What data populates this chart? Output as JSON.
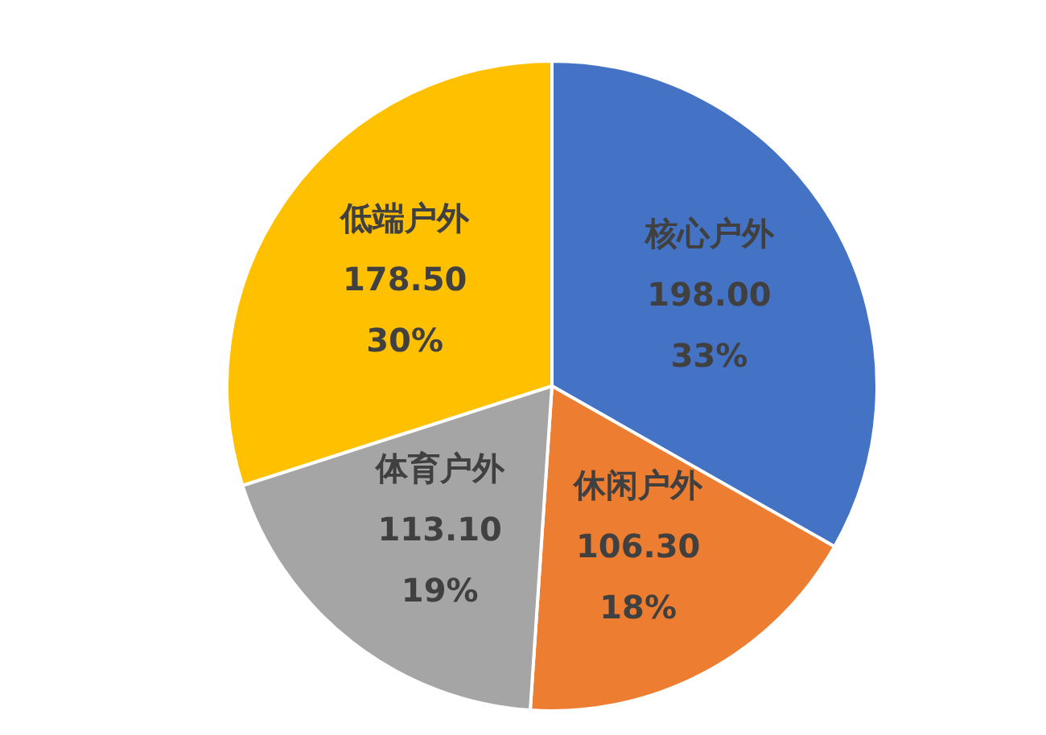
{
  "chart_data": {
    "type": "pie",
    "categories": [
      "核心户外",
      "休闲户外",
      "体育户外",
      "低端户外"
    ],
    "values": [
      198.0,
      106.3,
      113.1,
      178.5
    ],
    "colors": [
      "#4472c4",
      "#ed7d31",
      "#a5a5a5",
      "#ffc000"
    ],
    "value_labels": [
      "198.00",
      "106.30",
      "113.10",
      "178.50"
    ],
    "annotations": [
      {
        "text": "33%",
        "x": "核心户外"
      },
      {
        "text": "18%",
        "x": "休闲户外"
      },
      {
        "text": "19%",
        "x": "体育户外"
      },
      {
        "text": "30%",
        "x": "低端户外"
      }
    ]
  }
}
